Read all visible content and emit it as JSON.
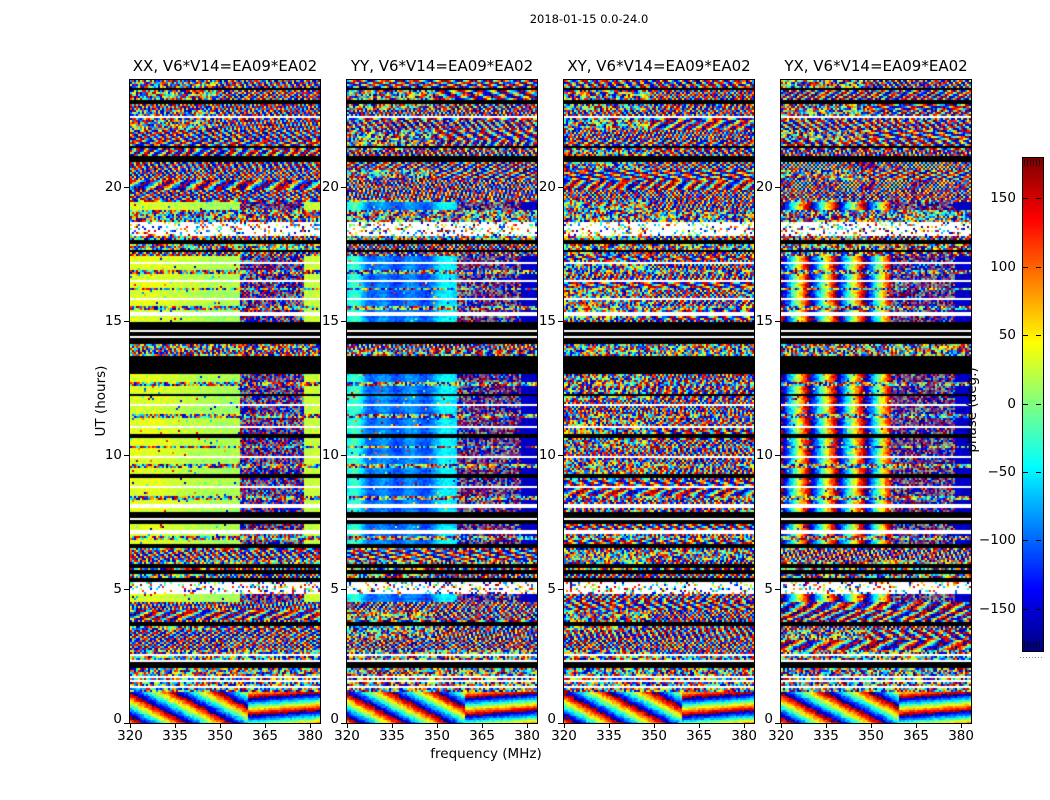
{
  "figure": {
    "title": "2018-01-15 0.0-24.0"
  },
  "axes": {
    "xlabel": "frequency (MHz)",
    "ylabel": "UT (hours)",
    "xtick_labels": [
      "320",
      "335",
      "350",
      "365",
      "380"
    ],
    "xtick_values": [
      320,
      335,
      350,
      365,
      380
    ],
    "ytick_labels": [
      "0",
      "5",
      "10",
      "15",
      "20"
    ],
    "ytick_values": [
      0,
      5,
      10,
      15,
      20
    ],
    "xlim": [
      320,
      383.3
    ],
    "ylim": [
      0,
      24
    ]
  },
  "colorbar": {
    "label": "phase (deg.)",
    "tick_labels": [
      "150",
      "100",
      "50",
      "0",
      "−50",
      "−100",
      "−150"
    ],
    "tick_values": [
      150,
      100,
      50,
      0,
      -50,
      -100,
      -150
    ],
    "vmin": -180,
    "vmax": 180,
    "colormap": "jet",
    "color_top": "#800000",
    "color_zero": "#80ff80",
    "color_bottom": "#000080"
  },
  "chart_data": {
    "type": "heatmap",
    "title": "2018-01-15 0.0-24.0",
    "xlabel": "frequency (MHz)",
    "ylabel": "UT (hours)",
    "zlabel": "phase (deg.)",
    "x_range_mhz": [
      320,
      383.3
    ],
    "y_range_hours": [
      0,
      24
    ],
    "z_range_deg": [
      -180,
      180
    ],
    "colormap": "jet",
    "legend_position": "right-colorbar",
    "grid": false,
    "panels": [
      {
        "title": "XX, V6*V14=EA09*EA02",
        "mode": "green",
        "smooth_phase_deg": 25
      },
      {
        "title": "YY, V6*V14=EA09*EA02",
        "mode": "blue",
        "smooth_phase_deg": -90
      },
      {
        "title": "XY, V6*V14=EA09*EA02",
        "mode": "noise",
        "smooth_phase_deg": null
      },
      {
        "title": "YX, V6*V14=EA09*EA02",
        "mode": "stripes",
        "smooth_phase_deg": null
      }
    ],
    "checker_freq_range_mhz": [
      357,
      378
    ],
    "edge_phase_deg": {
      "green": 25,
      "blue": -155,
      "stripes": -155
    },
    "bands": [
      {
        "t": [
          0.0,
          1.15
        ],
        "type": "diag",
        "desc": "diagonal phase-wrap fringes"
      },
      {
        "t": [
          1.15,
          1.3
        ],
        "type": "noiseline"
      },
      {
        "t": [
          1.3,
          2.05
        ],
        "type": "whitelines",
        "lines": [
          {
            "f": 0.2,
            "c": "noise"
          },
          {
            "f": 0.45,
            "c": "noise"
          },
          {
            "f": 0.7,
            "c": "noise"
          },
          {
            "f": 0.9,
            "c": "noise"
          }
        ]
      },
      {
        "t": [
          2.05,
          2.3
        ],
        "type": "black"
      },
      {
        "t": [
          2.3,
          2.55
        ],
        "type": "whitelines",
        "lines": [
          {
            "f": 0.5,
            "c": "noise"
          }
        ]
      },
      {
        "t": [
          2.55,
          2.7
        ],
        "type": "noiseline"
      },
      {
        "t": [
          2.7,
          3.6
        ],
        "type": "noise",
        "fringe": 0.5
      },
      {
        "t": [
          3.6,
          3.75
        ],
        "type": "black"
      },
      {
        "t": [
          3.75,
          4.5
        ],
        "type": "noise",
        "fringe": 0.6
      },
      {
        "t": [
          4.5,
          4.8
        ],
        "type": "smoothrow"
      },
      {
        "t": [
          4.8,
          5.25
        ],
        "type": "whitesparse"
      },
      {
        "t": [
          5.25,
          5.75
        ],
        "type": "noise",
        "fringe": 0.3,
        "lines": [
          {
            "f": 0.15,
            "c": "black"
          },
          {
            "f": 0.8,
            "c": "black"
          }
        ]
      },
      {
        "t": [
          5.75,
          5.9
        ],
        "type": "black"
      },
      {
        "t": [
          5.9,
          6.5
        ],
        "type": "noise",
        "fringe": 0.4
      },
      {
        "t": [
          6.5,
          6.65
        ],
        "type": "black"
      },
      {
        "t": [
          6.65,
          7.4
        ],
        "type": "smooth",
        "lines": [
          {
            "f": 0.35,
            "c": "noise"
          },
          {
            "f": 0.65,
            "c": "white"
          }
        ]
      },
      {
        "t": [
          7.4,
          7.9
        ],
        "type": "black",
        "lines": [
          {
            "f": 0.45,
            "c": "white"
          }
        ]
      },
      {
        "t": [
          7.9,
          13.0
        ],
        "type": "smooth",
        "lines": [
          {
            "f": 0.04,
            "c": "white"
          },
          {
            "f": 0.1,
            "c": "noise"
          },
          {
            "f": 0.18,
            "c": "white"
          },
          {
            "f": 0.26,
            "c": "black"
          },
          {
            "f": 0.33,
            "c": "noise"
          },
          {
            "f": 0.4,
            "c": "white"
          },
          {
            "f": 0.47,
            "c": "noise"
          },
          {
            "f": 0.55,
            "c": "black"
          },
          {
            "f": 0.62,
            "c": "white"
          },
          {
            "f": 0.7,
            "c": "noise"
          },
          {
            "f": 0.78,
            "c": "white"
          },
          {
            "f": 0.85,
            "c": "black"
          },
          {
            "f": 0.93,
            "c": "noise"
          }
        ]
      },
      {
        "t": [
          13.0,
          13.6
        ],
        "type": "black"
      },
      {
        "t": [
          13.6,
          13.8
        ],
        "type": "whitelines",
        "lines": [
          {
            "f": 0.3,
            "c": "black"
          },
          {
            "f": 0.7,
            "c": "noise"
          }
        ]
      },
      {
        "t": [
          13.8,
          14.15
        ],
        "type": "noiseline"
      },
      {
        "t": [
          14.15,
          14.95
        ],
        "type": "black",
        "lines": [
          {
            "f": 0.3,
            "c": "white"
          },
          {
            "f": 0.6,
            "c": "white"
          }
        ]
      },
      {
        "t": [
          14.95,
          17.45
        ],
        "type": "smooth",
        "lines": [
          {
            "f": 0.12,
            "c": "white"
          },
          {
            "f": 0.22,
            "c": "noise"
          },
          {
            "f": 0.35,
            "c": "white"
          },
          {
            "f": 0.5,
            "c": "noise"
          },
          {
            "f": 0.62,
            "c": "white"
          },
          {
            "f": 0.75,
            "c": "noise"
          },
          {
            "f": 0.88,
            "c": "white"
          }
        ]
      },
      {
        "t": [
          17.45,
          18.15
        ],
        "type": "noise",
        "fringe": 0.3,
        "lines": [
          {
            "f": 0.25,
            "c": "black"
          },
          {
            "f": 0.7,
            "c": "black"
          }
        ]
      },
      {
        "t": [
          18.15,
          18.7
        ],
        "type": "whitesparse"
      },
      {
        "t": [
          18.7,
          19.15
        ],
        "type": "noiseline"
      },
      {
        "t": [
          19.15,
          19.45
        ],
        "type": "smoothrow"
      },
      {
        "t": [
          19.45,
          20.95
        ],
        "type": "noise",
        "fringe": 0.8
      },
      {
        "t": [
          20.95,
          21.15
        ],
        "type": "black"
      },
      {
        "t": [
          21.15,
          22.55
        ],
        "type": "noise",
        "fringe": 0.7,
        "lines": [
          {
            "f": 0.25,
            "c": "black"
          }
        ]
      },
      {
        "t": [
          22.55,
          22.65
        ],
        "type": "white"
      },
      {
        "t": [
          22.65,
          24.0
        ],
        "type": "noise",
        "fringe": 0.75,
        "lines": [
          {
            "f": 0.4,
            "c": "black"
          },
          {
            "f": 0.75,
            "c": "black"
          }
        ]
      }
    ]
  }
}
